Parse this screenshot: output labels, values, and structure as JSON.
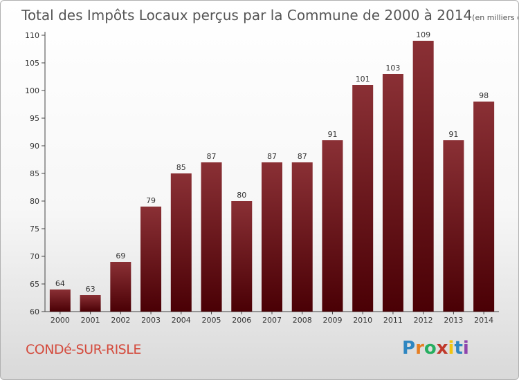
{
  "chart_data": {
    "type": "bar",
    "title": "Total des Impôts Locaux perçus par la Commune de 2000 à 2014",
    "title_unit": "(en milliers d'€)",
    "categories": [
      "2000",
      "2001",
      "2002",
      "2003",
      "2004",
      "2005",
      "2006",
      "2007",
      "2008",
      "2009",
      "2010",
      "2011",
      "2012",
      "2013",
      "2014"
    ],
    "values": [
      64,
      63,
      69,
      79,
      85,
      87,
      80,
      87,
      87,
      91,
      101,
      103,
      109,
      91,
      98
    ],
    "ylim": [
      60,
      110
    ],
    "yticks": [
      60,
      65,
      70,
      75,
      80,
      85,
      90,
      95,
      100,
      105,
      110
    ],
    "grid": false,
    "bar_color": "#7a1c22",
    "xlabel": "",
    "ylabel": ""
  },
  "footer": {
    "commune": "CONDé-SUR-RISLE",
    "logo_letters": [
      "P",
      "r",
      "o",
      "x",
      "i",
      "t",
      "i"
    ],
    "logo_colors": [
      "#2e86c1",
      "#e67e22",
      "#27ae60",
      "#c0392b",
      "#f1c40f",
      "#2e86c1",
      "#8e44ad"
    ]
  }
}
